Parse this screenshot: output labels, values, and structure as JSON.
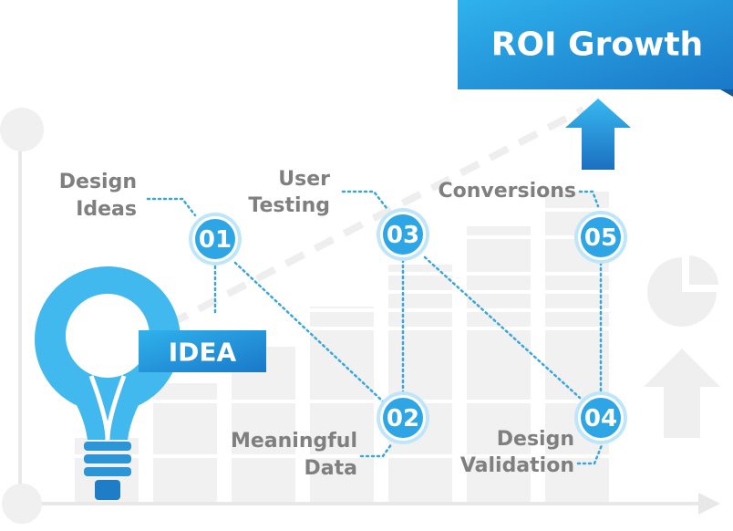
{
  "banner": {
    "title": "ROI Growth"
  },
  "idea": {
    "label": "IDEA"
  },
  "steps": [
    {
      "number": "01",
      "label_lines": [
        "Design",
        "Ideas"
      ]
    },
    {
      "number": "02",
      "label_lines": [
        "Meaningful",
        "Data"
      ]
    },
    {
      "number": "03",
      "label_lines": [
        "User",
        "Testing"
      ]
    },
    {
      "number": "04",
      "label_lines": [
        "Design",
        "Validation"
      ]
    },
    {
      "number": "05",
      "label_lines": [
        "Conversions"
      ]
    }
  ]
}
